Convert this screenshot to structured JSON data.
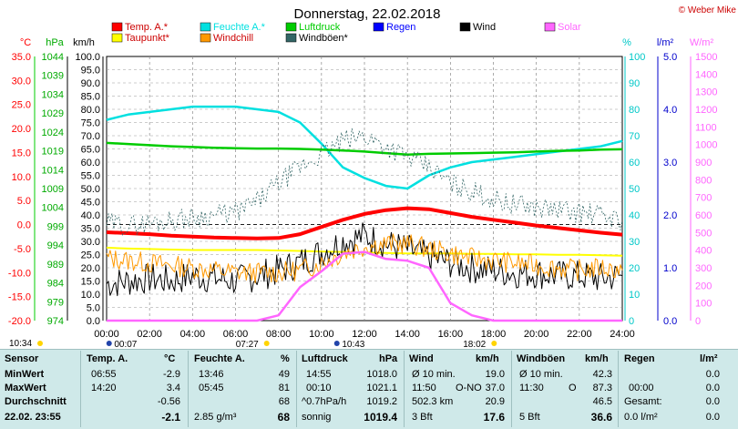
{
  "title": "Donnerstag, 22.02.2018",
  "copyright": "© Weber Mike",
  "legend": [
    {
      "label": "Temp. A.*",
      "color": "#ff0000"
    },
    {
      "label": "Feuchte A.*",
      "color": "#00e0e0"
    },
    {
      "label": "Luftdruck",
      "color": "#00cc00"
    },
    {
      "label": "Regen",
      "color": "#0000ff"
    },
    {
      "label": "Wind",
      "color": "#000000"
    },
    {
      "label": "Solar",
      "color": "#ff66ff"
    },
    {
      "label": "Taupunkt*",
      "color": "#ffff00"
    },
    {
      "label": "Windchill",
      "color": "#ff9900"
    },
    {
      "label": "Windböen*",
      "color": "#336666"
    }
  ],
  "axes": {
    "temp": {
      "unit": "°C",
      "ticks": [
        "35.0",
        "30.0",
        "25.0",
        "20.0",
        "15.0",
        "10.0",
        "5.0",
        "0.0",
        "-5.0",
        "-10.0",
        "-15.0",
        "-20.0"
      ],
      "color": "#ff0000"
    },
    "hpa": {
      "unit": "hPa",
      "ticks": [
        "1044",
        "1039",
        "1034",
        "1029",
        "1024",
        "1019",
        "1014",
        "1009",
        "1004",
        "999",
        "994",
        "989",
        "984",
        "979",
        "974"
      ],
      "color": "#00aa00"
    },
    "kmh": {
      "unit": "km/h",
      "ticks": [
        "100.0",
        "95.0",
        "90.0",
        "85.0",
        "80.0",
        "75.0",
        "70.0",
        "65.0",
        "60.0",
        "55.0",
        "50.0",
        "45.0",
        "40.0",
        "35.0",
        "30.0",
        "25.0",
        "20.0",
        "15.0",
        "10.0",
        "5.0",
        "0.0"
      ],
      "color": "#000000"
    },
    "pct": {
      "unit": "%",
      "ticks": [
        "100",
        "90",
        "80",
        "70",
        "60",
        "50",
        "40",
        "30",
        "20",
        "10",
        "0"
      ],
      "color": "#00c8c8"
    },
    "rain": {
      "unit": "l/m²",
      "ticks": [
        "5.0",
        "4.0",
        "3.0",
        "2.0",
        "1.0",
        "0.0"
      ],
      "color": "#0000cc"
    },
    "solar": {
      "unit": "W/m²",
      "ticks": [
        "1500",
        "1400",
        "1300",
        "1200",
        "1100",
        "1000",
        "900",
        "800",
        "700",
        "600",
        "500",
        "400",
        "300",
        "200",
        "100",
        "0"
      ],
      "color": "#ff66ff"
    },
    "x": {
      "ticks": [
        "00:00",
        "02:00",
        "04:00",
        "06:00",
        "08:00",
        "10:00",
        "12:00",
        "14:00",
        "16:00",
        "18:00",
        "20:00",
        "22:00",
        "24:00"
      ]
    }
  },
  "sun_markers": {
    "sunrise": "07:27",
    "sunset": "18:02",
    "moonrise": "10:34",
    "moon1": "00:07",
    "moon2": "10:43"
  },
  "chart_data": {
    "type": "line",
    "x_hours": [
      0,
      1,
      2,
      3,
      4,
      5,
      6,
      7,
      8,
      9,
      10,
      11,
      12,
      13,
      14,
      15,
      16,
      17,
      18,
      19,
      20,
      21,
      22,
      23,
      24
    ],
    "series": [
      {
        "name": "Temp. A.*",
        "axis": "temp",
        "values": [
          -1.6,
          -1.8,
          -2.0,
          -2.3,
          -2.5,
          -2.7,
          -2.8,
          -2.9,
          -2.8,
          -2.0,
          -0.5,
          1.0,
          2.2,
          3.0,
          3.4,
          3.2,
          2.4,
          1.6,
          1.0,
          0.4,
          -0.2,
          -0.7,
          -1.2,
          -1.7,
          -2.1
        ]
      },
      {
        "name": "Feuchte A.*",
        "axis": "pct",
        "values": [
          76,
          78,
          79,
          80,
          81,
          81,
          81,
          80,
          79,
          75,
          67,
          58,
          54,
          51,
          50,
          55,
          58,
          60,
          61,
          62,
          63,
          64,
          65,
          66,
          68
        ]
      },
      {
        "name": "Luftdruck",
        "axis": "hpa",
        "values": [
          1021.1,
          1020.8,
          1020.5,
          1020.2,
          1020.0,
          1019.8,
          1019.7,
          1019.6,
          1019.6,
          1019.5,
          1019.3,
          1019.1,
          1018.8,
          1018.4,
          1018.0,
          1018.2,
          1018.3,
          1018.4,
          1018.5,
          1018.6,
          1018.8,
          1019.0,
          1019.1,
          1019.3,
          1019.4
        ]
      },
      {
        "name": "Taupunkt*",
        "axis": "temp",
        "values": [
          -4.8,
          -5.0,
          -5.1,
          -5.2,
          -5.3,
          -5.3,
          -5.3,
          -5.3,
          -5.4,
          -5.5,
          -5.6,
          -5.7,
          -5.8,
          -5.9,
          -6.0,
          -6.0,
          -6.0,
          -6.1,
          -6.1,
          -6.2,
          -6.2,
          -6.3,
          -6.3,
          -6.4,
          -6.5
        ]
      },
      {
        "name": "Wind",
        "axis": "kmh",
        "values": [
          14,
          15,
          16,
          15,
          17,
          16,
          15,
          17,
          19,
          22,
          26,
          30,
          32,
          29,
          27,
          24,
          22,
          20,
          19,
          18,
          18,
          17,
          17,
          16,
          17
        ]
      },
      {
        "name": "Windchill",
        "axis": "temp",
        "values": [
          -7.0,
          -7.5,
          -8.0,
          -8.5,
          -9.0,
          -9.5,
          -10.0,
          -10.0,
          -10.0,
          -9.5,
          -8.0,
          -6.0,
          -4.5,
          -4.0,
          -4.0,
          -5.0,
          -6.0,
          -7.0,
          -7.5,
          -8.0,
          -8.5,
          -9.0,
          -9.5,
          -9.0,
          -9.5
        ]
      },
      {
        "name": "Windböen*",
        "axis": "kmh",
        "values": [
          37,
          36,
          37,
          38,
          39,
          40,
          41,
          45,
          52,
          58,
          63,
          68,
          70,
          66,
          62,
          58,
          52,
          49,
          46,
          44,
          43,
          42,
          41,
          40,
          38
        ]
      },
      {
        "name": "Solar",
        "axis": "solar",
        "values": [
          0,
          0,
          0,
          0,
          0,
          0,
          0,
          0,
          30,
          190,
          280,
          380,
          390,
          350,
          340,
          300,
          100,
          30,
          0,
          0,
          0,
          0,
          0,
          0,
          0
        ]
      }
    ]
  },
  "table": {
    "rows_header": [
      "Sensor",
      "MinWert",
      "MaxWert",
      "Durchschnitt",
      "22.02.  23:55"
    ],
    "temp": {
      "head": "Temp. A.",
      "unit": "°C",
      "min_time": "06:55",
      "min": "-2.9",
      "max_time": "14:20",
      "max": "3.4",
      "avg": "-0.56",
      "cur": "-2.1"
    },
    "hum": {
      "head": "Feuchte A.",
      "unit": "%",
      "min_time": "13:46",
      "min": "49",
      "max_time": "05:45",
      "max": "81",
      "avg": "68",
      "cur_extra": "2.85 g/m³",
      "cur": "68"
    },
    "pres": {
      "head": "Luftdruck",
      "unit": "hPa",
      "min_time": "14:55",
      "min": "1018.0",
      "max_time": "00:10",
      "max": "1021.1",
      "avg_extra": "^0.7hPa/h",
      "avg": "1019.2",
      "cur_extra": "sonnig",
      "cur": "1019.4"
    },
    "wind": {
      "head": "Wind",
      "unit": "km/h",
      "min_label": "Ø 10 min.",
      "min": "19.0",
      "max_time": "11:50",
      "max_dir": "O-NO",
      "max": "37.0",
      "avg_extra": "502.3 km",
      "avg": "20.9",
      "cur_extra": "3 Bft",
      "cur": "17.6"
    },
    "gust": {
      "head": "Windböen",
      "unit": "km/h",
      "min_label": "Ø 10 min.",
      "min": "42.3",
      "max_time": "11:30",
      "max_dir": "O",
      "max": "87.3",
      "avg": "46.5",
      "cur_extra": "5 Bft",
      "cur": "36.6"
    },
    "rain": {
      "head": "Regen",
      "unit": "l/m²",
      "min": "0.0",
      "max_time": "00:00",
      "max": "0.0",
      "avg_label": "Gesamt:",
      "avg": "0.0",
      "cur": "0.0 l/m²",
      "cur2": "0.0"
    }
  }
}
